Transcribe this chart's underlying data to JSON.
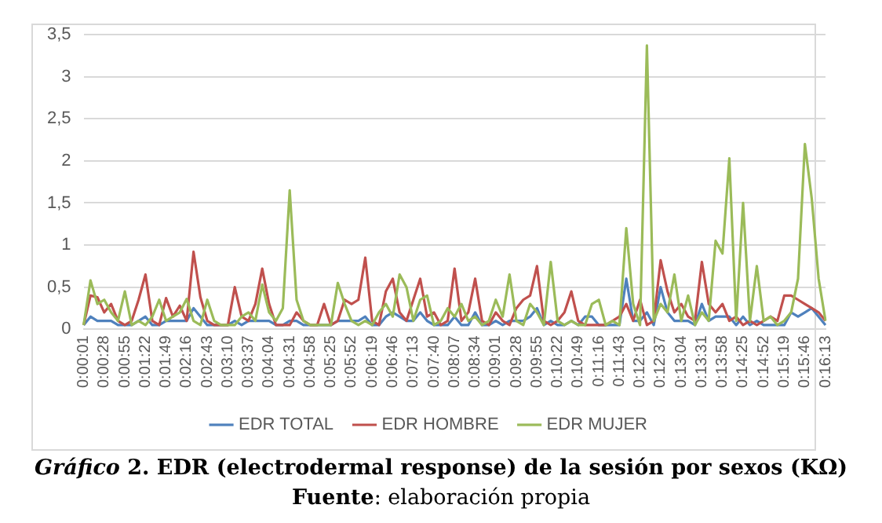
{
  "chart_data": {
    "type": "line",
    "title": "Gráfico 2. EDR (electrodermal response) de la sesión por sexos (KΩ)",
    "annotations": [
      "Fuente: elaboración propia"
    ],
    "categories": [
      "0:00:01",
      null,
      null,
      "0:00:28",
      null,
      null,
      "0:00:55",
      null,
      null,
      "0:01:22",
      null,
      null,
      "0:01:49",
      null,
      null,
      "0:02:16",
      null,
      null,
      "0:02:43",
      null,
      null,
      "0:03:10",
      null,
      null,
      "0:03:37",
      null,
      null,
      "0:04:04",
      null,
      null,
      "0:04:31",
      null,
      null,
      "0:04:58",
      null,
      null,
      "0:05:25",
      null,
      null,
      "0:05:52",
      null,
      null,
      "0:06:19",
      null,
      null,
      "0:06:46",
      null,
      null,
      "0:07:13",
      null,
      null,
      "0:07:40",
      null,
      null,
      "0:08:07",
      null,
      null,
      "0:08:34",
      null,
      null,
      "0:09:01",
      null,
      null,
      "0:09:28",
      null,
      null,
      "0:09:55",
      null,
      null,
      "0:10:22",
      null,
      null,
      "0:10:49",
      null,
      null,
      "0:11:16",
      null,
      null,
      "0:11:43",
      null,
      null,
      "0:12:10",
      null,
      null,
      "0:12:37",
      null,
      null,
      "0:13:04",
      null,
      null,
      "0:13:31",
      null,
      null,
      "0:13:58",
      null,
      null,
      "0:14:25",
      null,
      null,
      "0:14:52",
      null,
      null,
      "0:15:19",
      null,
      null,
      "0:15:46",
      null,
      null,
      "0:16:13"
    ],
    "series": [
      {
        "name": "EDR TOTAL",
        "color": "#4f81bd",
        "values": [
          0.05,
          0.15,
          0.1,
          0.1,
          0.1,
          0.05,
          0.05,
          0.05,
          0.1,
          0.15,
          0.05,
          0.05,
          0.1,
          0.1,
          0.1,
          0.1,
          0.25,
          0.15,
          0.05,
          0.05,
          0.05,
          0.05,
          0.1,
          0.05,
          0.1,
          0.1,
          0.1,
          0.1,
          0.05,
          0.05,
          0.1,
          0.1,
          0.05,
          0.05,
          0.05,
          0.05,
          0.05,
          0.1,
          0.1,
          0.1,
          0.1,
          0.15,
          0.05,
          0.05,
          0.15,
          0.2,
          0.15,
          0.1,
          0.1,
          0.2,
          0.1,
          0.05,
          0.05,
          0.05,
          0.15,
          0.05,
          0.05,
          0.2,
          0.05,
          0.05,
          0.1,
          0.05,
          0.1,
          0.1,
          0.1,
          0.15,
          0.25,
          0.05,
          0.1,
          0.05,
          0.05,
          0.1,
          0.05,
          0.15,
          0.15,
          0.05,
          0.05,
          0.05,
          0.05,
          0.6,
          0.1,
          0.1,
          0.2,
          0.05,
          0.5,
          0.2,
          0.1,
          0.1,
          0.1,
          0.05,
          0.3,
          0.1,
          0.15,
          0.15,
          0.15,
          0.05,
          0.15,
          0.05,
          0.1,
          0.05,
          0.05,
          0.05,
          0.05,
          0.2,
          0.15,
          0.2,
          0.25,
          0.15,
          0.05
        ]
      },
      {
        "name": "EDR HOMBRE",
        "color": "#c0504d",
        "values": [
          0.05,
          0.4,
          0.38,
          0.2,
          0.3,
          0.1,
          0.05,
          0.1,
          0.35,
          0.65,
          0.1,
          0.05,
          0.37,
          0.15,
          0.28,
          0.1,
          0.92,
          0.38,
          0.1,
          0.05,
          0.05,
          0.05,
          0.5,
          0.15,
          0.1,
          0.3,
          0.72,
          0.3,
          0.05,
          0.05,
          0.05,
          0.2,
          0.1,
          0.05,
          0.05,
          0.3,
          0.05,
          0.1,
          0.35,
          0.3,
          0.35,
          0.85,
          0.1,
          0.05,
          0.45,
          0.6,
          0.2,
          0.1,
          0.35,
          0.6,
          0.15,
          0.2,
          0.05,
          0.1,
          0.72,
          0.1,
          0.2,
          0.6,
          0.1,
          0.05,
          0.2,
          0.1,
          0.05,
          0.25,
          0.35,
          0.4,
          0.75,
          0.1,
          0.05,
          0.1,
          0.2,
          0.45,
          0.1,
          0.05,
          0.05,
          0.05,
          0.05,
          0.1,
          0.15,
          0.3,
          0.1,
          0.35,
          0.05,
          0.1,
          0.82,
          0.45,
          0.2,
          0.3,
          0.15,
          0.1,
          0.8,
          0.3,
          0.2,
          0.3,
          0.1,
          0.15,
          0.05,
          0.1,
          0.05,
          0.1,
          0.15,
          0.1,
          0.4,
          0.4,
          0.35,
          0.3,
          0.25,
          0.2,
          0.1
        ]
      },
      {
        "name": "EDR MUJER",
        "color": "#9bbb59",
        "values": [
          0.05,
          0.58,
          0.3,
          0.35,
          0.2,
          0.1,
          0.45,
          0.05,
          0.1,
          0.05,
          0.15,
          0.35,
          0.1,
          0.15,
          0.2,
          0.36,
          0.1,
          0.05,
          0.35,
          0.1,
          0.05,
          0.05,
          0.05,
          0.15,
          0.2,
          0.1,
          0.53,
          0.2,
          0.1,
          0.25,
          1.65,
          0.35,
          0.1,
          0.05,
          0.05,
          0.05,
          0.05,
          0.55,
          0.3,
          0.1,
          0.05,
          0.1,
          0.05,
          0.2,
          0.3,
          0.15,
          0.65,
          0.5,
          0.1,
          0.35,
          0.4,
          0.05,
          0.1,
          0.25,
          0.15,
          0.3,
          0.1,
          0.15,
          0.05,
          0.1,
          0.35,
          0.15,
          0.65,
          0.1,
          0.05,
          0.3,
          0.2,
          0.05,
          0.8,
          0.1,
          0.05,
          0.1,
          0.05,
          0.05,
          0.3,
          0.35,
          0.05,
          0.1,
          0.05,
          1.2,
          0.3,
          0.05,
          3.37,
          0.1,
          0.3,
          0.2,
          0.65,
          0.1,
          0.4,
          0.05,
          0.2,
          0.1,
          1.05,
          0.9,
          2.03,
          0.1,
          1.5,
          0.1,
          0.75,
          0.1,
          0.15,
          0.05,
          0.1,
          0.2,
          0.6,
          2.2,
          1.55,
          0.6,
          0.1
        ]
      }
    ],
    "ylim": [
      0,
      3.5
    ],
    "yticks": [
      0,
      {
        "value": 0.5,
        "label": "0,5"
      },
      1,
      {
        "value": 1.5,
        "label": "1,5"
      },
      2,
      {
        "value": 2.5,
        "label": "2,5"
      },
      3,
      {
        "value": 3.5,
        "label": "3,5"
      }
    ],
    "grid": "y",
    "legend": "bottom",
    "marker": "none"
  }
}
